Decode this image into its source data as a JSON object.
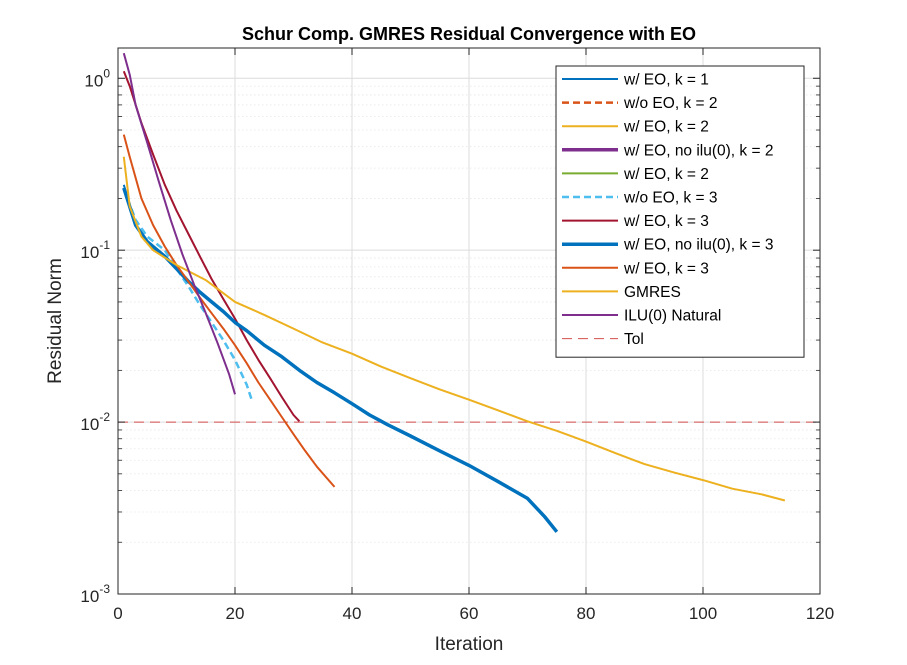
{
  "chart_data": {
    "type": "line",
    "title": "Schur Comp. GMRES Residual Convergence with EO",
    "xlabel": "Iteration",
    "ylabel": "Residual Norm",
    "xlim": [
      0,
      120
    ],
    "ylim": [
      0.001,
      1.5
    ],
    "yscale": "log",
    "x_ticks": [
      "0",
      "20",
      "40",
      "60",
      "80",
      "100",
      "120"
    ],
    "y_ticks": [
      {
        "value": 1,
        "base": "10",
        "exp": "0"
      },
      {
        "value": 0.1,
        "base": "10",
        "exp": "-1"
      },
      {
        "value": 0.01,
        "base": "10",
        "exp": "-2"
      },
      {
        "value": 0.001,
        "base": "10",
        "exp": "-3"
      }
    ],
    "grid": true,
    "minor_grid": true,
    "legend_position": "top-right",
    "series": [
      {
        "name": "w/ EO, k = 1",
        "color": "#0072BD",
        "width": 2,
        "dash": "solid",
        "points": [
          [
            1,
            0.24
          ],
          [
            3,
            0.14
          ],
          [
            5,
            0.112
          ],
          [
            8,
            0.092
          ],
          [
            10,
            0.078
          ],
          [
            12,
            0.066
          ],
          [
            14,
            0.057
          ],
          [
            16,
            0.05
          ],
          [
            18,
            0.044
          ],
          [
            20,
            0.038
          ],
          [
            22,
            0.034
          ],
          [
            25,
            0.028
          ],
          [
            28,
            0.024
          ],
          [
            31,
            0.02
          ],
          [
            34,
            0.017
          ],
          [
            37,
            0.0148
          ],
          [
            40,
            0.0128
          ],
          [
            43,
            0.011
          ],
          [
            46,
            0.0097
          ],
          [
            50,
            0.0083
          ],
          [
            55,
            0.0068
          ],
          [
            60,
            0.0056
          ],
          [
            65,
            0.0045
          ],
          [
            70,
            0.0036
          ],
          [
            73,
            0.0028
          ],
          [
            75,
            0.0023
          ]
        ]
      },
      {
        "name": "w/o EO, k = 2",
        "color": "#D95319",
        "width": 2.5,
        "dash": "dashed",
        "points": []
      },
      {
        "name": "w/ EO, k = 2",
        "color": "#EDB120",
        "width": 2,
        "dash": "solid",
        "points": []
      },
      {
        "name": "w/ EO, no ilu(0), k = 2",
        "color": "#7E2F8E",
        "width": 3.5,
        "dash": "solid",
        "points": []
      },
      {
        "name": "w/ EO, k = 2",
        "color": "#77AC30",
        "width": 2,
        "dash": "solid",
        "points": []
      },
      {
        "name": "w/o EO, k = 3",
        "color": "#4DBEEE",
        "width": 2.5,
        "dash": "dashed",
        "points": [
          [
            1,
            0.23
          ],
          [
            3,
            0.15
          ],
          [
            5,
            0.12
          ],
          [
            8,
            0.1
          ],
          [
            10,
            0.078
          ],
          [
            12,
            0.062
          ],
          [
            14,
            0.048
          ],
          [
            16,
            0.038
          ],
          [
            18,
            0.03
          ],
          [
            20,
            0.023
          ],
          [
            22,
            0.0165
          ],
          [
            23,
            0.013
          ]
        ]
      },
      {
        "name": "w/ EO, k = 3",
        "color": "#A2142F",
        "width": 2,
        "dash": "solid",
        "points": [
          [
            1,
            1.1
          ],
          [
            2,
            0.9
          ],
          [
            4,
            0.55
          ],
          [
            6,
            0.36
          ],
          [
            8,
            0.24
          ],
          [
            10,
            0.17
          ],
          [
            12,
            0.125
          ],
          [
            14,
            0.092
          ],
          [
            16,
            0.068
          ],
          [
            18,
            0.052
          ],
          [
            20,
            0.04
          ],
          [
            22,
            0.03
          ],
          [
            24,
            0.023
          ],
          [
            26,
            0.018
          ],
          [
            28,
            0.014
          ],
          [
            30,
            0.011
          ],
          [
            31,
            0.0101
          ]
        ]
      },
      {
        "name": "w/ EO, no ilu(0), k = 3",
        "color": "#0072BD",
        "width": 3.5,
        "dash": "solid",
        "points": [
          [
            1,
            0.23
          ],
          [
            3,
            0.14
          ],
          [
            5,
            0.112
          ],
          [
            8,
            0.092
          ],
          [
            10,
            0.078
          ],
          [
            12,
            0.066
          ],
          [
            14,
            0.057
          ],
          [
            16,
            0.05
          ],
          [
            18,
            0.044
          ],
          [
            20,
            0.038
          ],
          [
            22,
            0.034
          ],
          [
            25,
            0.028
          ],
          [
            28,
            0.024
          ],
          [
            31,
            0.02
          ],
          [
            34,
            0.017
          ],
          [
            37,
            0.0148
          ],
          [
            40,
            0.0128
          ],
          [
            43,
            0.011
          ],
          [
            46,
            0.0097
          ],
          [
            50,
            0.0083
          ],
          [
            55,
            0.0068
          ],
          [
            60,
            0.0056
          ],
          [
            65,
            0.0045
          ],
          [
            70,
            0.0036
          ],
          [
            73,
            0.0028
          ],
          [
            75,
            0.0023
          ]
        ]
      },
      {
        "name": "w/ EO, k = 3",
        "color": "#D95319",
        "width": 2,
        "dash": "solid",
        "points": [
          [
            1,
            0.47
          ],
          [
            2,
            0.35
          ],
          [
            4,
            0.2
          ],
          [
            6,
            0.14
          ],
          [
            8,
            0.105
          ],
          [
            10,
            0.082
          ],
          [
            12,
            0.066
          ],
          [
            14,
            0.053
          ],
          [
            16,
            0.043
          ],
          [
            18,
            0.035
          ],
          [
            20,
            0.028
          ],
          [
            22,
            0.022
          ],
          [
            24,
            0.017
          ],
          [
            26,
            0.0135
          ],
          [
            28,
            0.0107
          ],
          [
            30,
            0.0085
          ],
          [
            32,
            0.0068
          ],
          [
            34,
            0.0055
          ],
          [
            37,
            0.0042
          ]
        ]
      },
      {
        "name": "GMRES",
        "color": "#EDB120",
        "width": 2,
        "dash": "solid",
        "points": [
          [
            1,
            0.35
          ],
          [
            2,
            0.18
          ],
          [
            4,
            0.12
          ],
          [
            6,
            0.1
          ],
          [
            10,
            0.082
          ],
          [
            15,
            0.067
          ],
          [
            20,
            0.05
          ],
          [
            25,
            0.042
          ],
          [
            30,
            0.035
          ],
          [
            35,
            0.029
          ],
          [
            40,
            0.025
          ],
          [
            45,
            0.021
          ],
          [
            50,
            0.018
          ],
          [
            55,
            0.0155
          ],
          [
            60,
            0.0135
          ],
          [
            65,
            0.0117
          ],
          [
            70,
            0.0101
          ],
          [
            75,
            0.0089
          ],
          [
            80,
            0.0077
          ],
          [
            85,
            0.0066
          ],
          [
            90,
            0.0057
          ],
          [
            95,
            0.0051
          ],
          [
            100,
            0.0046
          ],
          [
            105,
            0.0041
          ],
          [
            110,
            0.0038
          ],
          [
            114,
            0.0035
          ]
        ]
      },
      {
        "name": "ILU(0) Natural",
        "color": "#7E2F8E",
        "width": 2,
        "dash": "solid",
        "points": [
          [
            1,
            1.4
          ],
          [
            2,
            1.05
          ],
          [
            3,
            0.7
          ],
          [
            5,
            0.42
          ],
          [
            7,
            0.25
          ],
          [
            9,
            0.15
          ],
          [
            11,
            0.095
          ],
          [
            13,
            0.063
          ],
          [
            15,
            0.043
          ],
          [
            17,
            0.029
          ],
          [
            19,
            0.019
          ],
          [
            20,
            0.0145
          ]
        ]
      },
      {
        "name": "Tol",
        "color": "#D34E4E",
        "width": 1,
        "dash": "longdash",
        "points": [
          [
            0,
            0.01
          ],
          [
            120,
            0.01
          ]
        ]
      }
    ]
  }
}
